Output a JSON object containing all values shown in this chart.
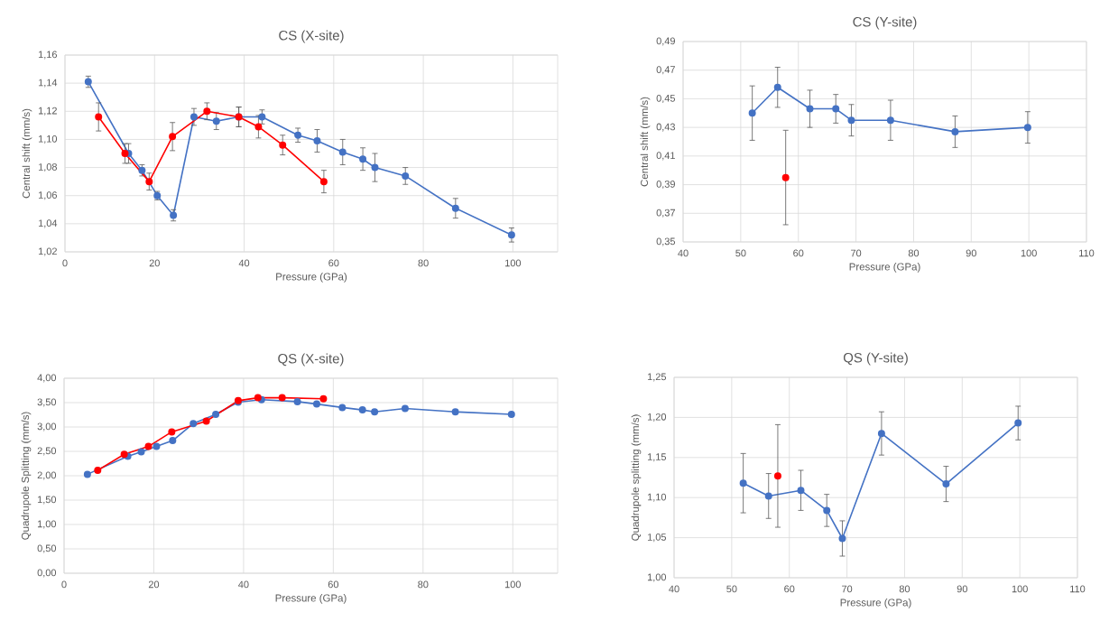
{
  "chart_data": [
    {
      "type": "line",
      "title": "CS (X-site)",
      "xlabel": "Pressure (GPa)",
      "ylabel": "Central shift (mm/s)",
      "xlim": [
        0,
        110
      ],
      "xticks": [
        0,
        20,
        40,
        60,
        80,
        100
      ],
      "ylim": [
        1.02,
        1.16
      ],
      "yticks": [
        {
          "value": 1.02,
          "label": "1,02"
        },
        {
          "value": 1.04,
          "label": "1,04"
        },
        {
          "value": 1.06,
          "label": "1,06"
        },
        {
          "value": 1.08,
          "label": "1,08"
        },
        {
          "value": 1.1,
          "label": "1,10"
        },
        {
          "value": 1.12,
          "label": "1,12"
        },
        {
          "value": 1.14,
          "label": "1,14"
        },
        {
          "value": 1.16,
          "label": "1,16"
        }
      ],
      "grid": true,
      "marker": "circle",
      "series": [
        {
          "color": "#4472c4",
          "x": [
            5.2,
            14.2,
            17.2,
            20.6,
            24.2,
            28.8,
            33.8,
            38.8,
            44,
            52,
            56.3,
            62,
            66.5,
            69.2,
            76,
            87.2,
            99.7
          ],
          "values": [
            1.141,
            1.09,
            1.078,
            1.06,
            1.046,
            1.116,
            1.113,
            1.116,
            1.116,
            1.103,
            1.099,
            1.091,
            1.086,
            1.08,
            1.074,
            1.051,
            1.032
          ],
          "errors": [
            0.004,
            0.007,
            0.004,
            0.003,
            0.004,
            0.006,
            0.006,
            0.007,
            0.005,
            0.005,
            0.008,
            0.009,
            0.008,
            0.01,
            0.006,
            0.007,
            0.005
          ]
        },
        {
          "color": "#ff0000",
          "x": [
            7.5,
            13.4,
            18.8,
            24,
            31.7,
            38.8,
            43.2,
            48.6,
            57.8
          ],
          "values": [
            1.116,
            1.09,
            1.07,
            1.102,
            1.12,
            1.116,
            1.109,
            1.096,
            1.07
          ],
          "errors": [
            0.01,
            0.007,
            0.006,
            0.01,
            0.006,
            0.007,
            0.008,
            0.007,
            0.008
          ]
        }
      ]
    },
    {
      "type": "line",
      "title": "CS (Y-site)",
      "xlabel": "Pressure (GPa)",
      "ylabel": "Central shift (mm/s)",
      "xlim": [
        40,
        110
      ],
      "xticks": [
        40,
        50,
        60,
        70,
        80,
        90,
        100,
        110
      ],
      "ylim": [
        0.35,
        0.49
      ],
      "yticks": [
        {
          "value": 0.35,
          "label": "0,35"
        },
        {
          "value": 0.37,
          "label": "0,37"
        },
        {
          "value": 0.39,
          "label": "0,39"
        },
        {
          "value": 0.41,
          "label": "0,41"
        },
        {
          "value": 0.43,
          "label": "0,43"
        },
        {
          "value": 0.45,
          "label": "0,45"
        },
        {
          "value": 0.47,
          "label": "0,47"
        },
        {
          "value": 0.49,
          "label": "0,49"
        }
      ],
      "grid": true,
      "marker": "circle",
      "series": [
        {
          "color": "#4472c4",
          "x": [
            52,
            56.4,
            62,
            66.5,
            69.2,
            76,
            87.2,
            99.8
          ],
          "values": [
            0.44,
            0.458,
            0.443,
            0.443,
            0.435,
            0.435,
            0.427,
            0.43
          ],
          "errors": [
            0.019,
            0.014,
            0.013,
            0.01,
            0.011,
            0.014,
            0.011,
            0.011
          ]
        },
        {
          "type": "scatter",
          "color": "#ff0000",
          "x": [
            57.8
          ],
          "values": [
            0.395
          ],
          "errors": [
            0.033
          ]
        }
      ]
    },
    {
      "type": "line",
      "title": "QS (X-site)",
      "xlabel": "Pressure (GPa)",
      "ylabel": "Quadrupole Splitting (mm/s)",
      "xlim": [
        0,
        110
      ],
      "xticks": [
        0,
        20,
        40,
        60,
        80,
        100
      ],
      "ylim": [
        0,
        4
      ],
      "yticks": [
        {
          "value": 0,
          "label": "0,00"
        },
        {
          "value": 0.5,
          "label": "0,50"
        },
        {
          "value": 1.0,
          "label": "1,00"
        },
        {
          "value": 1.5,
          "label": "1,50"
        },
        {
          "value": 2.0,
          "label": "2,00"
        },
        {
          "value": 2.5,
          "label": "2,50"
        },
        {
          "value": 3.0,
          "label": "3,00"
        },
        {
          "value": 3.5,
          "label": "3,50"
        },
        {
          "value": 4.0,
          "label": "4,00"
        }
      ],
      "grid": true,
      "marker": "circle",
      "series": [
        {
          "color": "#4472c4",
          "x": [
            5.2,
            14.2,
            17.2,
            20.6,
            24.2,
            28.8,
            33.8,
            38.8,
            44,
            52,
            56.3,
            62,
            66.5,
            69.2,
            76,
            87.2,
            99.7
          ],
          "values": [
            2.03,
            2.4,
            2.49,
            2.6,
            2.72,
            3.07,
            3.26,
            3.51,
            3.56,
            3.52,
            3.47,
            3.4,
            3.35,
            3.31,
            3.38,
            3.31,
            3.26
          ]
        },
        {
          "color": "#ff0000",
          "x": [
            7.5,
            13.4,
            18.8,
            24,
            31.7,
            38.8,
            43.2,
            48.6,
            57.8
          ],
          "values": [
            2.11,
            2.44,
            2.6,
            2.9,
            3.12,
            3.54,
            3.6,
            3.6,
            3.58
          ]
        }
      ]
    },
    {
      "type": "line",
      "title": "QS (Y-site)",
      "xlabel": "Pressure (GPa)",
      "ylabel": "Quadrupole splitting (mm/s)",
      "xlim": [
        40,
        110
      ],
      "xticks": [
        40,
        50,
        60,
        70,
        80,
        90,
        100,
        110
      ],
      "ylim": [
        1.0,
        1.25
      ],
      "yticks": [
        {
          "value": 1.0,
          "label": "1,00"
        },
        {
          "value": 1.05,
          "label": "1,05"
        },
        {
          "value": 1.1,
          "label": "1,10"
        },
        {
          "value": 1.15,
          "label": "1,15"
        },
        {
          "value": 1.2,
          "label": "1,20"
        },
        {
          "value": 1.25,
          "label": "1,25"
        }
      ],
      "grid": true,
      "marker": "circle",
      "series": [
        {
          "color": "#4472c4",
          "x": [
            52,
            56.4,
            62,
            66.5,
            69.2,
            76,
            87.2,
            99.7
          ],
          "values": [
            1.118,
            1.102,
            1.109,
            1.084,
            1.049,
            1.18,
            1.117,
            1.193
          ],
          "errors": [
            0.037,
            0.028,
            0.025,
            0.02,
            0.022,
            0.027,
            0.022,
            0.021
          ]
        },
        {
          "type": "scatter",
          "color": "#ff0000",
          "x": [
            58
          ],
          "values": [
            1.127
          ],
          "errors": [
            0.064
          ]
        }
      ]
    }
  ]
}
